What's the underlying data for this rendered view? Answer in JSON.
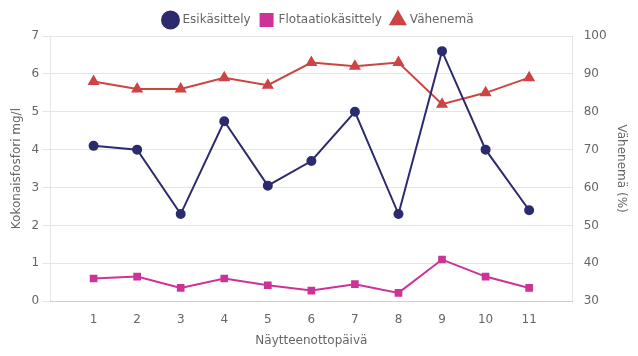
{
  "chart_data": {
    "type": "line",
    "x": [
      1,
      2,
      3,
      4,
      5,
      6,
      7,
      8,
      9,
      10,
      11
    ],
    "xlabel": "Näytteenottopäivä",
    "ylabel": "Kokonaisfosfori mg/l",
    "y2label": "Vähenemä (%)",
    "xlim": [
      0,
      12
    ],
    "xticks": [
      1,
      2,
      3,
      4,
      5,
      6,
      7,
      8,
      9,
      10,
      11
    ],
    "ylim": [
      0,
      7
    ],
    "yticks": [
      0,
      1,
      2,
      3,
      4,
      5,
      6,
      7
    ],
    "y2lim": [
      30,
      100
    ],
    "y2ticks": [
      30,
      40,
      50,
      60,
      70,
      80,
      90,
      100
    ],
    "grid": true,
    "legend": "top",
    "series": [
      {
        "name": "Esikäsittely",
        "color": "#2b2b6e",
        "marker": "circle",
        "line_style": "solid",
        "values": [
          4.1,
          4.0,
          2.3,
          4.75,
          3.05,
          3.7,
          5.0,
          2.3,
          6.6,
          4.0,
          2.4
        ]
      },
      {
        "name": "Flotaatiokäsittely",
        "color": "#cc3399",
        "marker": "square",
        "line_style": "solid",
        "values": [
          0.6,
          0.65,
          0.35,
          0.6,
          0.42,
          0.28,
          0.45,
          0.22,
          1.1,
          0.65,
          0.35
        ]
      },
      {
        "name": "Vähenemä",
        "color": "#cc4444",
        "marker": "triangle",
        "line_style": "solid",
        "axis": "y2",
        "values": [
          88,
          86,
          86,
          89,
          87,
          93,
          92,
          93,
          82,
          85,
          89
        ]
      }
    ]
  }
}
